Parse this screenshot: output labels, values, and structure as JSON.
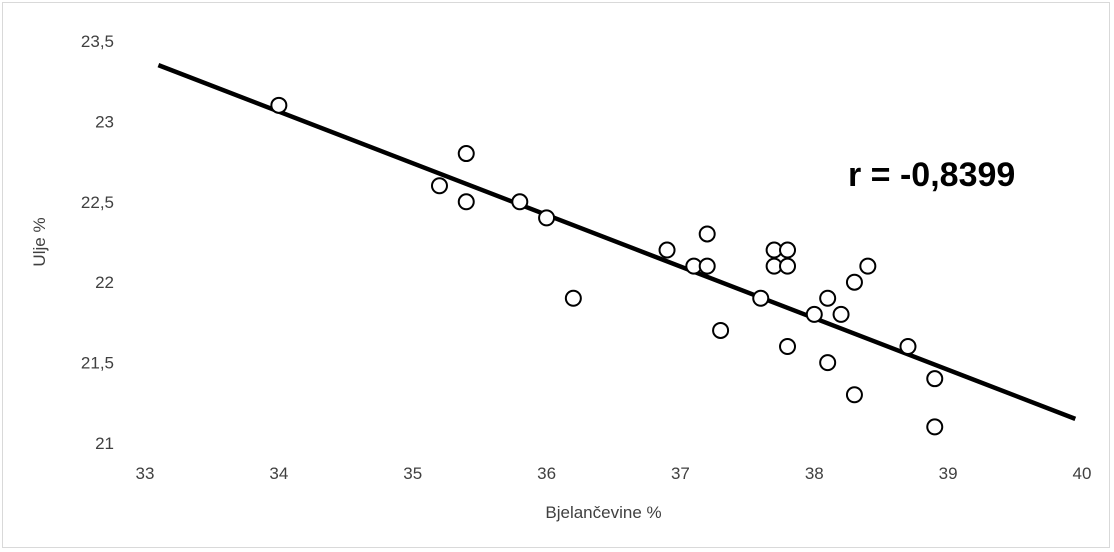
{
  "chart_data": {
    "type": "scatter",
    "title": "",
    "xlabel": "Bjelančevine %",
    "ylabel": "Ulje %",
    "xlim": [
      33,
      40
    ],
    "ylim": [
      21,
      23.5
    ],
    "x_ticks": [
      "33",
      "34",
      "35",
      "36",
      "37",
      "38",
      "39",
      "40"
    ],
    "y_ticks": [
      "21",
      "21,5",
      "22",
      "22,5",
      "23",
      "23,5"
    ],
    "grid": false,
    "legend": "none",
    "annotation": "r = -0,8399",
    "colors": {
      "line": "#000000",
      "marker_edge": "#000000",
      "marker_fill": "#ffffff",
      "text": "#404040"
    },
    "series": [
      {
        "points": [
          [
            34.0,
            23.1
          ],
          [
            35.2,
            22.6
          ],
          [
            35.4,
            22.8
          ],
          [
            35.4,
            22.5
          ],
          [
            35.8,
            22.5
          ],
          [
            36.0,
            22.4
          ],
          [
            36.2,
            21.9
          ],
          [
            36.9,
            22.2
          ],
          [
            37.1,
            22.1
          ],
          [
            37.2,
            22.3
          ],
          [
            37.2,
            22.1
          ],
          [
            37.3,
            21.7
          ],
          [
            37.6,
            21.9
          ],
          [
            37.7,
            22.2
          ],
          [
            37.7,
            22.1
          ],
          [
            37.8,
            22.2
          ],
          [
            37.8,
            22.1
          ],
          [
            37.8,
            21.6
          ],
          [
            38.0,
            21.8
          ],
          [
            38.1,
            21.9
          ],
          [
            38.1,
            21.5
          ],
          [
            38.2,
            21.8
          ],
          [
            38.3,
            22.0
          ],
          [
            38.3,
            21.3
          ],
          [
            38.4,
            22.1
          ],
          [
            38.7,
            21.6
          ],
          [
            38.9,
            21.4
          ],
          [
            38.9,
            21.1
          ]
        ]
      }
    ],
    "trendline": {
      "type": "linear",
      "from": [
        33.1,
        23.35
      ],
      "to": [
        39.95,
        21.15
      ]
    }
  }
}
